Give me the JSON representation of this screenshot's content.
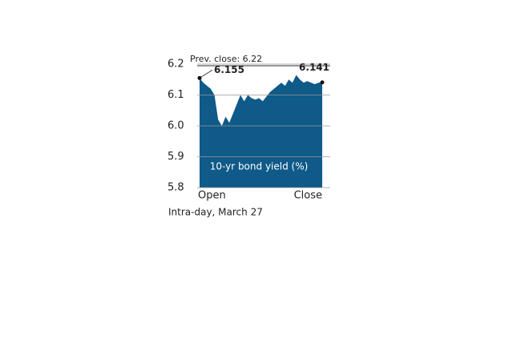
{
  "chart_data": {
    "type": "area",
    "title": "10-yr bond yield (%)",
    "subtitle": "Intra-day, March 27",
    "annotation": "Prev. close: 6.22",
    "categories": [
      "Open",
      null,
      null,
      null,
      null,
      null,
      null,
      null,
      null,
      null,
      null,
      null,
      null,
      null,
      null,
      null,
      null,
      null,
      null,
      null,
      null,
      null,
      null,
      null,
      null,
      null,
      null,
      null,
      null,
      null,
      null,
      null,
      null,
      "Close"
    ],
    "values": [
      6.155,
      6.14,
      6.13,
      6.12,
      6.1,
      6.02,
      6.0,
      6.03,
      6.01,
      6.04,
      6.07,
      6.1,
      6.08,
      6.1,
      6.09,
      6.085,
      6.09,
      6.08,
      6.095,
      6.11,
      6.12,
      6.13,
      6.14,
      6.13,
      6.15,
      6.14,
      6.165,
      6.15,
      6.14,
      6.145,
      6.14,
      6.135,
      6.14,
      6.141
    ],
    "color": "#0f5a88",
    "ylim": [
      5.8,
      6.2
    ],
    "yticks": [
      5.8,
      5.9,
      {
        "value": 6,
        "label": "6.0"
      },
      6.1,
      6.2
    ],
    "grid": true
  }
}
